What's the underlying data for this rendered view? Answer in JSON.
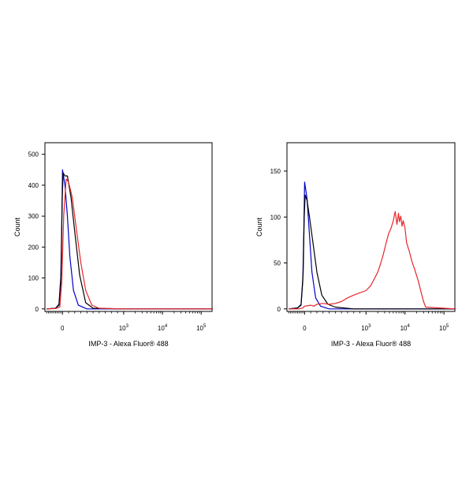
{
  "colors": {
    "blue": "#0000cc",
    "black": "#000000",
    "red": "#e8262b",
    "frame": "#000000"
  },
  "chart_data": [
    {
      "type": "line",
      "title": "",
      "xlabel": "IMP-3 - Alexa Fluor® 488",
      "ylabel": "Count",
      "x_scale": "logicle",
      "x_ticks": [
        {
          "value": 0,
          "label": "0"
        },
        {
          "value": 1000,
          "label": "10",
          "exp": "3"
        },
        {
          "value": 10000,
          "label": "10",
          "exp": "4"
        },
        {
          "value": 100000,
          "label": "10",
          "exp": "5"
        }
      ],
      "xlim": [
        -1000,
        200000
      ],
      "y_ticks": [
        0,
        100,
        200,
        300,
        400,
        500
      ],
      "ylim": [
        0,
        520
      ],
      "grid": false,
      "series": [
        {
          "color": "blue",
          "x": [
            -900,
            -400,
            -200,
            -100,
            -40,
            0,
            40,
            80,
            120,
            180,
            260,
            400,
            1000,
            200000
          ],
          "y": [
            0,
            2,
            15,
            80,
            280,
            450,
            400,
            300,
            170,
            60,
            12,
            0,
            0,
            0
          ]
        },
        {
          "color": "black",
          "x": [
            -900,
            -400,
            -200,
            -80,
            -20,
            10,
            40,
            80,
            140,
            200,
            280,
            380,
            500,
            1000,
            200000
          ],
          "y": [
            0,
            2,
            12,
            120,
            340,
            440,
            430,
            430,
            360,
            250,
            110,
            20,
            2,
            0,
            0
          ]
        },
        {
          "color": "red",
          "x": [
            -900,
            -400,
            -150,
            -40,
            20,
            60,
            100,
            160,
            220,
            300,
            380,
            480,
            600,
            1000,
            200000
          ],
          "y": [
            0,
            1,
            6,
            90,
            300,
            420,
            410,
            360,
            270,
            150,
            60,
            12,
            2,
            0,
            0
          ]
        }
      ]
    },
    {
      "type": "line",
      "title": "",
      "xlabel": "IMP-3 - Alexa Fluor® 488",
      "ylabel": "Count",
      "x_scale": "logicle",
      "x_ticks": [
        {
          "value": 0,
          "label": "0"
        },
        {
          "value": 1000,
          "label": "10",
          "exp": "3"
        },
        {
          "value": 10000,
          "label": "10",
          "exp": "4"
        },
        {
          "value": 100000,
          "label": "10",
          "exp": "5"
        }
      ],
      "xlim": [
        -1000,
        200000
      ],
      "y_ticks": [
        0,
        50,
        100,
        150
      ],
      "ylim": [
        0,
        175
      ],
      "grid": false,
      "series": [
        {
          "color": "blue",
          "x": [
            -900,
            -400,
            -200,
            -100,
            -40,
            0,
            40,
            80,
            120,
            180,
            260,
            400,
            1000,
            200000
          ],
          "y": [
            0,
            1,
            5,
            30,
            90,
            138,
            120,
            80,
            40,
            12,
            3,
            0,
            0,
            0
          ]
        },
        {
          "color": "black",
          "x": [
            -900,
            -400,
            -200,
            -80,
            -20,
            10,
            40,
            80,
            140,
            200,
            280,
            380,
            500,
            800,
            200000
          ],
          "y": [
            0,
            1,
            4,
            40,
            100,
            124,
            118,
            100,
            70,
            40,
            15,
            5,
            2,
            0,
            0
          ]
        },
        {
          "color": "red",
          "x": [
            -900,
            -300,
            -100,
            0,
            100,
            150,
            200,
            300,
            400,
            500,
            600,
            700,
            800,
            1000,
            1300,
            1600,
            2000,
            2400,
            2800,
            3300,
            3800,
            4400,
            5000,
            5600,
            6200,
            6800,
            7200,
            7800,
            8400,
            9000,
            10000,
            11000,
            13000,
            15000,
            18000,
            22000,
            26000,
            30000,
            34000,
            200000
          ],
          "y": [
            0,
            0,
            1,
            3,
            4,
            3,
            5,
            6,
            5,
            6,
            8,
            12,
            15,
            20,
            25,
            32,
            40,
            50,
            60,
            72,
            82,
            88,
            96,
            106,
            92,
            104,
            95,
            101,
            90,
            96,
            88,
            72,
            62,
            52,
            42,
            30,
            18,
            8,
            2,
            0
          ]
        }
      ]
    }
  ]
}
